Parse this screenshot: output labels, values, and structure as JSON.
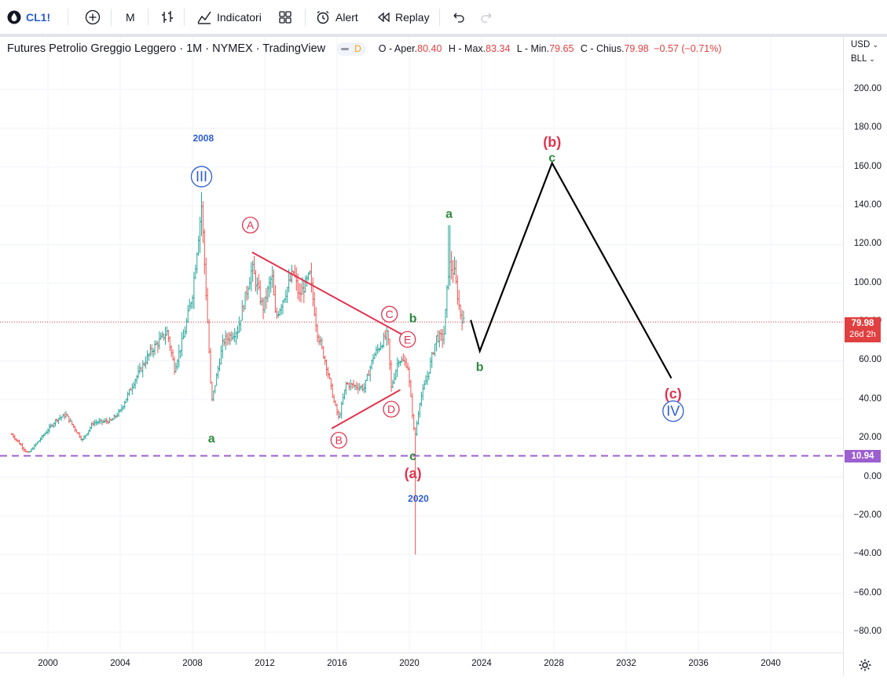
{
  "toolbar": {
    "symbol": "CL1!",
    "interval": "M",
    "indicators_label": "Indicatori",
    "alert_label": "Alert",
    "replay_label": "Replay",
    "icons": [
      "drop-icon",
      "add-icon",
      "bar-style-icon",
      "indicators-icon",
      "layout-icon",
      "alarm-icon",
      "replay-icon",
      "undo-icon",
      "redo-icon"
    ]
  },
  "legend": {
    "title": "Futures Petrolio Greggio Leggero · 1M · NYMEX · TradingView",
    "badge": "D",
    "o_label": "O - Aper.",
    "o_value": "80.40",
    "h_label": "H - Max.",
    "h_value": "83.34",
    "l_label": "L - Min.",
    "l_value": "79.65",
    "c_label": "C - Chius.",
    "c_value": "79.98",
    "change": "−0.57 (−0.71%)"
  },
  "axis": {
    "currency": "USD",
    "unit": "BLL",
    "last_price": "79.98",
    "countdown": "26d 2h",
    "support_price": "10.94",
    "settings_icon": "gear-icon"
  },
  "colors": {
    "up": "#26a69a",
    "down": "#ef5350",
    "wave_red": "#e0334e",
    "wave_green": "#2e8b3e",
    "wave_blue": "#2a5cd1",
    "triangle": "#e0334e",
    "projection": "#000000",
    "support": "#9c5fd0",
    "price_line": "#e04040"
  },
  "chart_data": {
    "type": "ohlc",
    "x_axis": {
      "ticks": [
        "2000",
        "2004",
        "2008",
        "2012",
        "2016",
        "2020",
        "2024",
        "2028",
        "2032",
        "2036",
        "2040"
      ]
    },
    "y_axis": {
      "ticks": [
        "200.00",
        "180.00",
        "160.00",
        "140.00",
        "120.00",
        "100.00",
        "80.00",
        "60.00",
        "40.00",
        "20.00",
        "0.00",
        "−20.00",
        "−40.00",
        "−60.00",
        "−80.00"
      ],
      "range": [
        -85,
        220
      ]
    },
    "series": [
      {
        "anchors": [
          {
            "x": 1998.0,
            "y": 22
          },
          {
            "x": 1998.9,
            "y": 12
          },
          {
            "x": 2000.5,
            "y": 30
          },
          {
            "x": 2001.0,
            "y": 32
          },
          {
            "x": 2001.9,
            "y": 19
          },
          {
            "x": 2002.5,
            "y": 28
          },
          {
            "x": 2003.5,
            "y": 29
          },
          {
            "x": 2004.0,
            "y": 34
          },
          {
            "x": 2004.8,
            "y": 50
          },
          {
            "x": 2005.7,
            "y": 65
          },
          {
            "x": 2006.6,
            "y": 75
          },
          {
            "x": 2007.0,
            "y": 56
          },
          {
            "x": 2007.5,
            "y": 72
          },
          {
            "x": 2008.0,
            "y": 95
          },
          {
            "x": 2008.5,
            "y": 140
          },
          {
            "x": 2008.9,
            "y": 68
          },
          {
            "x": 2009.05,
            "y": 38
          },
          {
            "x": 2009.7,
            "y": 70
          },
          {
            "x": 2010.5,
            "y": 76
          },
          {
            "x": 2011.3,
            "y": 108
          },
          {
            "x": 2011.9,
            "y": 87
          },
          {
            "x": 2012.4,
            "y": 104
          },
          {
            "x": 2012.6,
            "y": 82
          },
          {
            "x": 2013.6,
            "y": 106
          },
          {
            "x": 2013.9,
            "y": 93
          },
          {
            "x": 2014.5,
            "y": 104
          },
          {
            "x": 2014.9,
            "y": 75
          },
          {
            "x": 2015.4,
            "y": 58
          },
          {
            "x": 2015.8,
            "y": 40
          },
          {
            "x": 2016.1,
            "y": 30
          },
          {
            "x": 2016.5,
            "y": 48
          },
          {
            "x": 2017.5,
            "y": 46
          },
          {
            "x": 2018.0,
            "y": 62
          },
          {
            "x": 2018.8,
            "y": 74
          },
          {
            "x": 2019.0,
            "y": 46
          },
          {
            "x": 2019.4,
            "y": 61
          },
          {
            "x": 2019.9,
            "y": 58
          },
          {
            "x": 2020.3,
            "y": 20
          },
          {
            "x": 2020.6,
            "y": 40
          },
          {
            "x": 2021.0,
            "y": 52
          },
          {
            "x": 2021.5,
            "y": 72
          },
          {
            "x": 2021.9,
            "y": 72
          },
          {
            "x": 2022.2,
            "y": 110
          },
          {
            "x": 2022.5,
            "y": 105
          },
          {
            "x": 2022.8,
            "y": 85
          },
          {
            "x": 2023.0,
            "y": 80
          }
        ],
        "extremes": [
          {
            "x": 2008.5,
            "y": 147
          },
          {
            "x": 2020.3,
            "y": -40
          },
          {
            "x": 2022.2,
            "y": 130
          }
        ],
        "last_close": 79.98
      }
    ],
    "horizontal_lines": [
      {
        "y": 79.98,
        "style": "dotted",
        "role": "last-price"
      },
      {
        "y": 10.94,
        "style": "dashed",
        "role": "support"
      }
    ],
    "triangle_lines": [
      {
        "from": {
          "x": 2011.3,
          "y": 116
        },
        "to": {
          "x": 2019.9,
          "y": 72
        }
      },
      {
        "from": {
          "x": 2015.7,
          "y": 25
        },
        "to": {
          "x": 2019.5,
          "y": 45
        }
      }
    ],
    "projection": [
      {
        "x": 2023.4,
        "y": 81
      },
      {
        "x": 2023.9,
        "y": 65
      },
      {
        "x": 2027.9,
        "y": 162
      },
      {
        "x": 2034.5,
        "y": 51
      }
    ],
    "annotations": [
      {
        "text": "2008",
        "x": 2008.6,
        "y": 175,
        "color": "wave_blue",
        "circle": false
      },
      {
        "text": "III",
        "x": 2008.5,
        "y": 155,
        "color": "wave_blue",
        "circle": true
      },
      {
        "text": "a",
        "x": 2009.05,
        "y": 20,
        "color": "wave_green",
        "circle": false
      },
      {
        "text": "A",
        "x": 2011.2,
        "y": 130,
        "color": "wave_red",
        "circle": true
      },
      {
        "text": "B",
        "x": 2016.1,
        "y": 19,
        "color": "wave_red",
        "circle": true
      },
      {
        "text": "C",
        "x": 2018.9,
        "y": 84,
        "color": "wave_red",
        "circle": true
      },
      {
        "text": "D",
        "x": 2019.0,
        "y": 35,
        "color": "wave_red",
        "circle": true
      },
      {
        "text": "E",
        "x": 2019.9,
        "y": 71,
        "color": "wave_red",
        "circle": true
      },
      {
        "text": "b",
        "x": 2020.2,
        "y": 82,
        "color": "wave_green",
        "circle": false
      },
      {
        "text": "c",
        "x": 2020.2,
        "y": 11,
        "color": "wave_green",
        "circle": false
      },
      {
        "text": "(a)",
        "x": 2020.2,
        "y": 2,
        "color": "wave_red",
        "circle": false
      },
      {
        "text": "2020",
        "x": 2020.5,
        "y": -11,
        "color": "wave_blue",
        "circle": false
      },
      {
        "text": "a",
        "x": 2022.2,
        "y": 136,
        "color": "wave_green",
        "circle": false
      },
      {
        "text": "b",
        "x": 2023.9,
        "y": 57,
        "color": "wave_green",
        "circle": false
      },
      {
        "text": "(b)",
        "x": 2027.9,
        "y": 173,
        "color": "wave_red",
        "circle": false
      },
      {
        "text": "c",
        "x": 2027.9,
        "y": 165,
        "color": "wave_green",
        "circle": false
      },
      {
        "text": "(c)",
        "x": 2034.6,
        "y": 43,
        "color": "wave_red",
        "circle": false
      },
      {
        "text": "IV",
        "x": 2034.6,
        "y": 34,
        "color": "wave_blue",
        "circle": true
      }
    ]
  }
}
